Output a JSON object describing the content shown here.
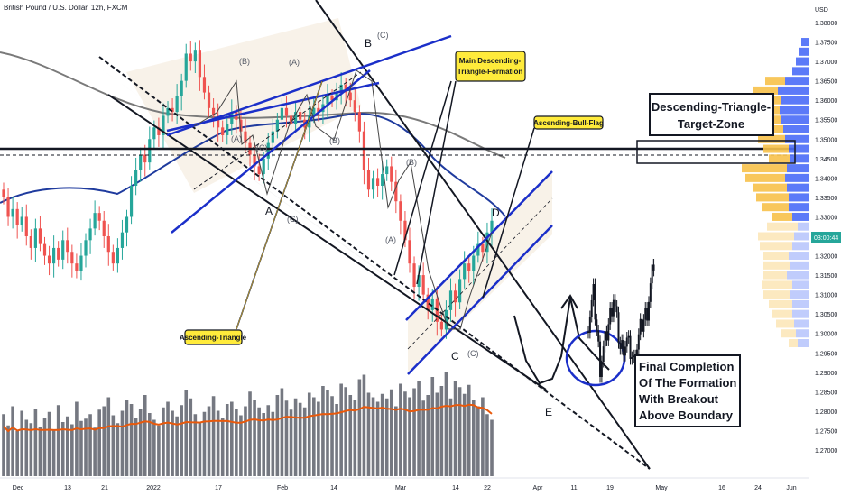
{
  "header": {
    "symbol_title": "British Pound / U.S. Dollar, 12h, FXCM"
  },
  "price_axis": {
    "currency": "USD",
    "levels": [
      "1.38000",
      "1.37500",
      "1.37000",
      "1.36500",
      "1.36000",
      "1.35500",
      "1.35000",
      "1.34500",
      "1.34000",
      "1.33500",
      "1.33000",
      "1.32500",
      "1.32000",
      "1.31500",
      "1.31000",
      "1.30500",
      "1.30000",
      "1.29500",
      "1.29000",
      "1.28500",
      "1.28000",
      "1.27500",
      "1.27000"
    ],
    "current_price_tag": "03:00:44"
  },
  "time_axis": {
    "labels": [
      "Dec",
      "13",
      "21",
      "2022",
      "17",
      "Feb",
      "14",
      "Mar",
      "14",
      "22",
      "Apr",
      "11",
      "19",
      "May",
      "16",
      "24",
      "Jun"
    ]
  },
  "wave_labels": {
    "A": "A",
    "B": "B",
    "C": "C",
    "D": "D",
    "E": "E",
    "paren_B1": "(B)",
    "paren_A1": "(A)",
    "paren_A2": "(A)",
    "paren_C1": "(C)",
    "paren_B2": "(B)",
    "paren_C2": "(C)",
    "paren_B3": "(B)",
    "paren_A3": "(A)",
    "paren_C3": "(C)",
    "paren_C4": "(C)"
  },
  "callouts": {
    "main_triangle": [
      "Main Descending-",
      "Triangle-Formation"
    ],
    "bull_flag": "Ascending-Bull-Flag",
    "ascending_triangle": "Ascending-Triangle"
  },
  "target_zone": {
    "lines": [
      "Descending-Triangle-",
      "Target-Zone"
    ]
  },
  "completion_box": {
    "lines": [
      "Final Completion",
      "Of The Formation",
      "With Breakout",
      "Above Boundary"
    ]
  },
  "colors": {
    "up_candle": "#26a69a",
    "down_candle": "#ef5350",
    "trend_blue": "#1b2fc9",
    "ma_blue": "#1f3b9e",
    "ma_gray": "#7a7a7a",
    "volume_ma": "#e8590c",
    "callout_fill": "#ffeb3b",
    "vp_orange": "#f7c14a",
    "vp_blue": "#4a6cf7"
  },
  "chart_data": {
    "type": "candlestick",
    "title": "British Pound / U.S. Dollar, 12h, FXCM",
    "ylabel": "USD",
    "ylim": [
      1.27,
      1.385
    ],
    "key_level": 1.3445,
    "target_zone": [
      1.3425,
      1.3475
    ],
    "series_close": [
      1.335,
      1.33,
      1.332,
      1.328,
      1.33,
      1.325,
      1.322,
      1.327,
      1.323,
      1.32,
      1.318,
      1.322,
      1.319,
      1.324,
      1.321,
      1.318,
      1.316,
      1.32,
      1.324,
      1.327,
      1.331,
      1.329,
      1.325,
      1.321,
      1.318,
      1.322,
      1.326,
      1.33,
      1.338,
      1.342,
      1.346,
      1.344,
      1.35,
      1.353,
      1.351,
      1.356,
      1.358,
      1.357,
      1.361,
      1.365,
      1.372,
      1.37,
      1.373,
      1.366,
      1.362,
      1.358,
      1.356,
      1.353,
      1.351,
      1.354,
      1.357,
      1.355,
      1.352,
      1.349,
      1.346,
      1.343,
      1.341,
      1.345,
      1.349,
      1.352,
      1.355,
      1.358,
      1.356,
      1.354,
      1.357,
      1.355,
      1.353,
      1.356,
      1.358,
      1.357,
      1.359,
      1.361,
      1.36,
      1.362,
      1.364,
      1.362,
      1.36,
      1.357,
      1.352,
      1.342,
      1.337,
      1.34,
      1.338,
      1.341,
      1.343,
      1.339,
      1.334,
      1.329,
      1.324,
      1.318,
      1.312,
      1.315,
      1.31,
      1.306,
      1.309,
      1.303,
      1.301,
      1.306,
      1.311,
      1.308,
      1.314,
      1.318,
      1.316,
      1.32,
      1.323,
      1.321,
      1.326,
      1.329
    ],
    "projected_path": [
      1.3005,
      1.31,
      1.2915,
      1.3,
      1.3095,
      1.296,
      1.298,
      1.2925,
      1.301,
      1.306,
      1.318
    ],
    "volume_relative": [
      0.55,
      0.45,
      0.62,
      0.4,
      0.58,
      0.5,
      0.47,
      0.6,
      0.44,
      0.52,
      0.57,
      0.41,
      0.63,
      0.48,
      0.53,
      0.46,
      0.66,
      0.49,
      0.51,
      0.55,
      0.43,
      0.59,
      0.62,
      0.7,
      0.54,
      0.47,
      0.58,
      0.68,
      0.64,
      0.52,
      0.6,
      0.72,
      0.56,
      0.5,
      0.45,
      0.61,
      0.66,
      0.58,
      0.53,
      0.63,
      0.76,
      0.69,
      0.55,
      0.48,
      0.57,
      0.62,
      0.71,
      0.58,
      0.52,
      0.64,
      0.66,
      0.6,
      0.54,
      0.62,
      0.75,
      0.68,
      0.61,
      0.56,
      0.63,
      0.57,
      0.72,
      0.78,
      0.67,
      0.59,
      0.69,
      0.65,
      0.61,
      0.74,
      0.7,
      0.66,
      0.8,
      0.76,
      0.71,
      0.64,
      0.82,
      0.79,
      0.72,
      0.68,
      0.86,
      0.9,
      0.74,
      0.7,
      0.66,
      0.73,
      0.69,
      0.77,
      0.62,
      0.82,
      0.75,
      0.7,
      0.78,
      0.84,
      0.67,
      0.72,
      0.88,
      0.74,
      0.8,
      0.92,
      0.69,
      0.84,
      0.79,
      0.73,
      0.81,
      0.68,
      0.62,
      0.7,
      0.55,
      0.5
    ]
  }
}
